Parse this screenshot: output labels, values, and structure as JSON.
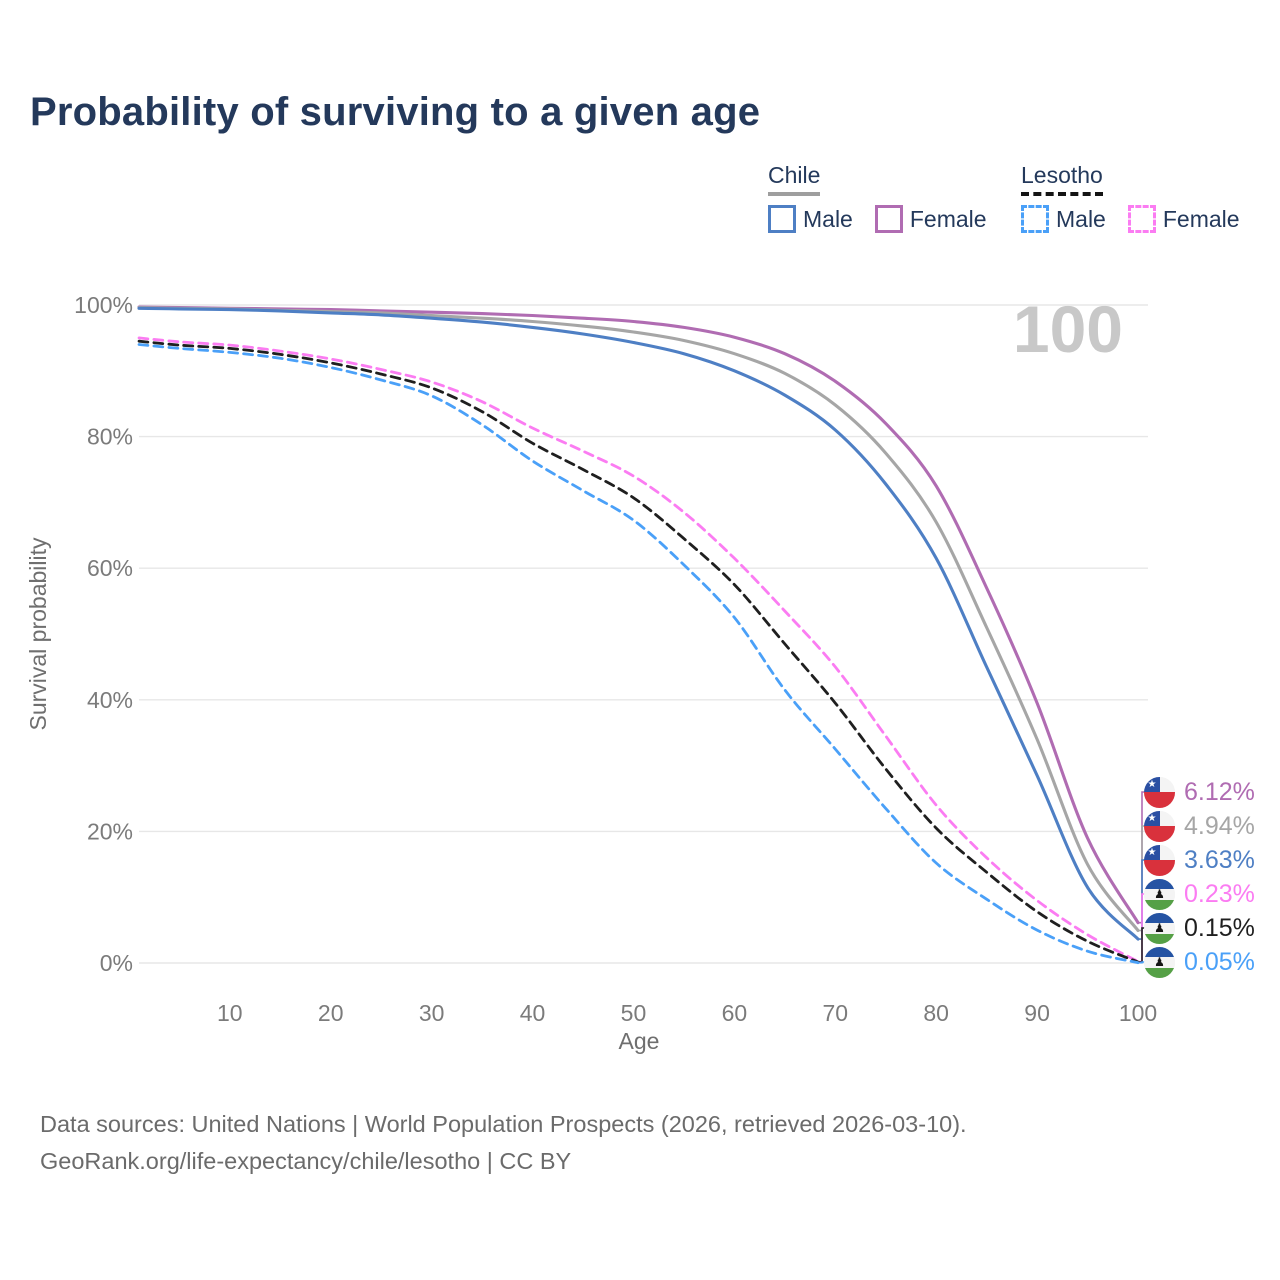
{
  "title": "Probability of surviving to a given age",
  "watermark_age": "100",
  "legend": {
    "groups": [
      {
        "title": "Chile",
        "underline_style": "solid",
        "underline_color": "#9e9e9e",
        "items": [
          {
            "label": "Male",
            "color": "#4e7fc4",
            "dashed": false
          },
          {
            "label": "Female",
            "color": "#b06cb2",
            "dashed": false
          }
        ]
      },
      {
        "title": "Lesotho",
        "underline_style": "dashed",
        "underline_color": "#141414",
        "items": [
          {
            "label": "Male",
            "color": "#4aa0f8",
            "dashed": true
          },
          {
            "label": "Female",
            "color": "#fb7cf2",
            "dashed": true
          }
        ]
      }
    ]
  },
  "chart_data": {
    "type": "line",
    "title": "Probability of surviving to a given age",
    "xlabel": "Age",
    "ylabel": "Survival probability",
    "xlim": [
      1,
      100
    ],
    "ylim": [
      0,
      100
    ],
    "grid": "horizontal",
    "legend_position": "top-right",
    "x_ticks": [
      10,
      20,
      30,
      40,
      50,
      60,
      70,
      80,
      90,
      100
    ],
    "y_ticks": [
      {
        "value": 0,
        "label": "0%"
      },
      {
        "value": 20,
        "label": "20%"
      },
      {
        "value": 40,
        "label": "40%"
      },
      {
        "value": 60,
        "label": "60%"
      },
      {
        "value": 80,
        "label": "80%"
      },
      {
        "value": 100,
        "label": "100%"
      }
    ],
    "x": [
      1,
      5,
      10,
      15,
      20,
      25,
      30,
      35,
      40,
      45,
      50,
      55,
      60,
      65,
      70,
      75,
      80,
      85,
      90,
      95,
      100
    ],
    "series": [
      {
        "name": "Chile Female",
        "country": "Chile",
        "legend_label": "Female",
        "style": "solid",
        "color": "#b06cb2",
        "end_label": "6.12%",
        "values": [
          99.7,
          99.6,
          99.5,
          99.4,
          99.3,
          99.1,
          98.9,
          98.7,
          98.4,
          98.0,
          97.5,
          96.6,
          95.1,
          92.6,
          88.4,
          82.0,
          72.5,
          57.0,
          39.5,
          19.0,
          6.12
        ]
      },
      {
        "name": "Chile",
        "country": "Chile",
        "legend_label": "",
        "style": "solid",
        "color": "#a6a6a6",
        "end_label": "4.94%",
        "values": [
          99.6,
          99.5,
          99.4,
          99.2,
          99.0,
          98.8,
          98.4,
          98.0,
          97.5,
          96.8,
          95.9,
          94.6,
          92.6,
          89.6,
          84.8,
          77.5,
          67.0,
          51.0,
          34.0,
          15.0,
          4.94
        ]
      },
      {
        "name": "Chile Male",
        "country": "Chile",
        "legend_label": "Male",
        "style": "solid",
        "color": "#4e7fc4",
        "end_label": "3.63%",
        "values": [
          99.5,
          99.4,
          99.3,
          99.1,
          98.8,
          98.5,
          98.0,
          97.4,
          96.6,
          95.6,
          94.3,
          92.6,
          90.0,
          86.3,
          81.0,
          72.8,
          61.5,
          45.0,
          28.5,
          11.5,
          3.63
        ]
      },
      {
        "name": "Lesotho Female",
        "country": "Lesotho",
        "legend_label": "Female",
        "style": "dashed",
        "color": "#fb7cf2",
        "end_label": "0.23%",
        "values": [
          95.0,
          94.4,
          93.9,
          93.0,
          91.8,
          90.2,
          88.3,
          85.3,
          81.3,
          77.8,
          74.0,
          68.5,
          61.5,
          53.5,
          45.0,
          34.5,
          24.0,
          16.0,
          9.5,
          4.3,
          0.23
        ]
      },
      {
        "name": "Lesotho",
        "country": "Lesotho",
        "legend_label": "",
        "style": "dashed",
        "color": "#1f1f1f",
        "end_label": "0.15%",
        "values": [
          94.5,
          93.9,
          93.4,
          92.5,
          91.2,
          89.5,
          87.4,
          83.8,
          79.0,
          75.0,
          70.7,
          64.5,
          57.5,
          48.5,
          39.5,
          29.5,
          20.5,
          13.8,
          7.8,
          3.3,
          0.15
        ]
      },
      {
        "name": "Lesotho Male",
        "country": "Lesotho",
        "legend_label": "Male",
        "style": "dashed",
        "color": "#4aa0f8",
        "end_label": "0.05%",
        "values": [
          94.0,
          93.4,
          92.8,
          91.9,
          90.5,
          88.6,
          86.2,
          81.8,
          76.3,
          71.8,
          67.3,
          60.5,
          52.5,
          41.5,
          32.5,
          23.5,
          15.2,
          9.7,
          5.0,
          1.8,
          0.05
        ]
      }
    ]
  },
  "footer": {
    "line1": "Data sources: United Nations | World Population Prospects (2026, retrieved 2026-03-10).",
    "line2": "GeoRank.org/life-expectancy/chile/lesotho | CC BY"
  }
}
